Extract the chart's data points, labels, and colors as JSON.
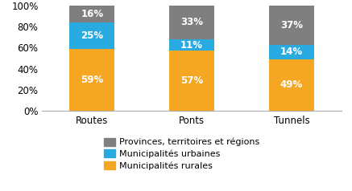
{
  "categories": [
    "Routes",
    "Ponts",
    "Tunnels"
  ],
  "rural": [
    59,
    57,
    49
  ],
  "urban": [
    25,
    11,
    14
  ],
  "provinces": [
    16,
    33,
    37
  ],
  "color_rural": "#F5A623",
  "color_urban": "#29ABE2",
  "color_provinces": "#7F7F7F",
  "legend_labels": [
    "Provinces, territoires et régions",
    "Municipalités urbaines",
    "Municipalités rurales"
  ],
  "yticks": [
    0,
    20,
    40,
    60,
    80,
    100
  ],
  "ytick_labels": [
    "0%",
    "20%",
    "40%",
    "60%",
    "80%",
    "100%"
  ],
  "bar_width": 0.45,
  "label_fontsize": 8.5,
  "legend_fontsize": 8,
  "tick_fontsize": 8.5
}
